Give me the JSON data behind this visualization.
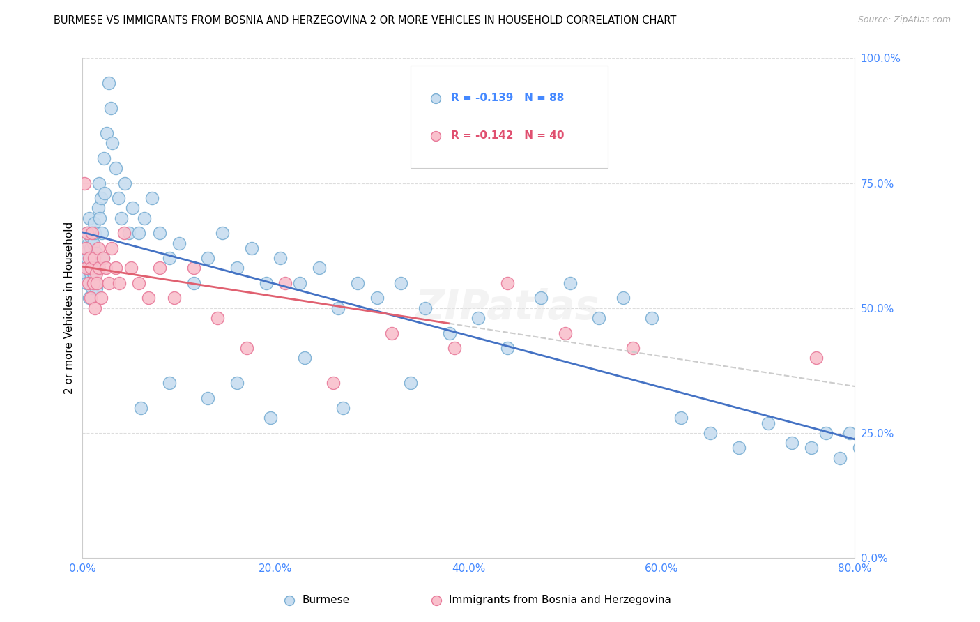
{
  "title": "BURMESE VS IMMIGRANTS FROM BOSNIA AND HERZEGOVINA 2 OR MORE VEHICLES IN HOUSEHOLD CORRELATION CHART",
  "source": "Source: ZipAtlas.com",
  "ylabel": "2 or more Vehicles in Household",
  "legend_blue_r": "-0.139",
  "legend_blue_n": "88",
  "legend_pink_r": "-0.142",
  "legend_pink_n": "40",
  "blue_color": "#c8ddf0",
  "pink_color": "#f9c0cc",
  "blue_edge": "#7aafd4",
  "pink_edge": "#e87a9a",
  "trend_blue": "#4472c4",
  "trend_pink": "#e06070",
  "trend_dashed": "#cccccc",
  "blue_label": "Burmese",
  "pink_label": "Immigrants from Bosnia and Herzegovina",
  "xlim": [
    0.0,
    0.8
  ],
  "ylim": [
    0.0,
    1.0
  ],
  "xticks": [
    0.0,
    0.2,
    0.4,
    0.6,
    0.8
  ],
  "xticklabels": [
    "0.0%",
    "20.0%",
    "40.0%",
    "60.0%",
    "80.0%"
  ],
  "yticks": [
    0.0,
    0.25,
    0.5,
    0.75,
    1.0
  ],
  "yticklabels": [
    "0.0%",
    "25.0%",
    "50.0%",
    "75.0%",
    "100.0%"
  ],
  "tick_color": "#4488ff",
  "grid_color": "#dddddd",
  "blue_x": [
    0.002,
    0.003,
    0.004,
    0.005,
    0.005,
    0.006,
    0.006,
    0.007,
    0.007,
    0.008,
    0.008,
    0.009,
    0.009,
    0.01,
    0.01,
    0.011,
    0.011,
    0.012,
    0.012,
    0.013,
    0.013,
    0.014,
    0.014,
    0.015,
    0.016,
    0.017,
    0.018,
    0.019,
    0.02,
    0.021,
    0.022,
    0.023,
    0.025,
    0.027,
    0.029,
    0.031,
    0.034,
    0.037,
    0.04,
    0.044,
    0.048,
    0.052,
    0.058,
    0.064,
    0.072,
    0.08,
    0.09,
    0.1,
    0.115,
    0.13,
    0.145,
    0.16,
    0.175,
    0.19,
    0.205,
    0.225,
    0.245,
    0.265,
    0.285,
    0.305,
    0.33,
    0.355,
    0.38,
    0.41,
    0.44,
    0.475,
    0.505,
    0.535,
    0.56,
    0.59,
    0.62,
    0.65,
    0.68,
    0.71,
    0.735,
    0.755,
    0.77,
    0.785,
    0.795,
    0.805,
    0.34,
    0.27,
    0.13,
    0.16,
    0.195,
    0.23,
    0.06,
    0.09
  ],
  "blue_y": [
    0.57,
    0.61,
    0.55,
    0.6,
    0.65,
    0.58,
    0.63,
    0.52,
    0.68,
    0.57,
    0.62,
    0.58,
    0.64,
    0.54,
    0.6,
    0.57,
    0.63,
    0.56,
    0.67,
    0.59,
    0.65,
    0.54,
    0.61,
    0.58,
    0.7,
    0.75,
    0.68,
    0.72,
    0.65,
    0.6,
    0.8,
    0.73,
    0.85,
    0.95,
    0.9,
    0.83,
    0.78,
    0.72,
    0.68,
    0.75,
    0.65,
    0.7,
    0.65,
    0.68,
    0.72,
    0.65,
    0.6,
    0.63,
    0.55,
    0.6,
    0.65,
    0.58,
    0.62,
    0.55,
    0.6,
    0.55,
    0.58,
    0.5,
    0.55,
    0.52,
    0.55,
    0.5,
    0.45,
    0.48,
    0.42,
    0.52,
    0.55,
    0.48,
    0.52,
    0.48,
    0.28,
    0.25,
    0.22,
    0.27,
    0.23,
    0.22,
    0.25,
    0.2,
    0.25,
    0.22,
    0.35,
    0.3,
    0.32,
    0.35,
    0.28,
    0.4,
    0.3,
    0.35
  ],
  "pink_x": [
    0.002,
    0.003,
    0.004,
    0.005,
    0.006,
    0.007,
    0.008,
    0.009,
    0.01,
    0.011,
    0.012,
    0.013,
    0.014,
    0.015,
    0.016,
    0.017,
    0.019,
    0.021,
    0.024,
    0.027,
    0.03,
    0.034,
    0.038,
    0.043,
    0.05,
    0.058,
    0.068,
    0.08,
    0.095,
    0.115,
    0.14,
    0.17,
    0.21,
    0.26,
    0.32,
    0.385,
    0.44,
    0.5,
    0.57,
    0.76
  ],
  "pink_y": [
    0.75,
    0.62,
    0.58,
    0.65,
    0.55,
    0.6,
    0.52,
    0.58,
    0.65,
    0.55,
    0.6,
    0.5,
    0.57,
    0.55,
    0.62,
    0.58,
    0.52,
    0.6,
    0.58,
    0.55,
    0.62,
    0.58,
    0.55,
    0.65,
    0.58,
    0.55,
    0.52,
    0.58,
    0.52,
    0.58,
    0.48,
    0.42,
    0.55,
    0.35,
    0.45,
    0.42,
    0.55,
    0.45,
    0.42,
    0.4
  ]
}
